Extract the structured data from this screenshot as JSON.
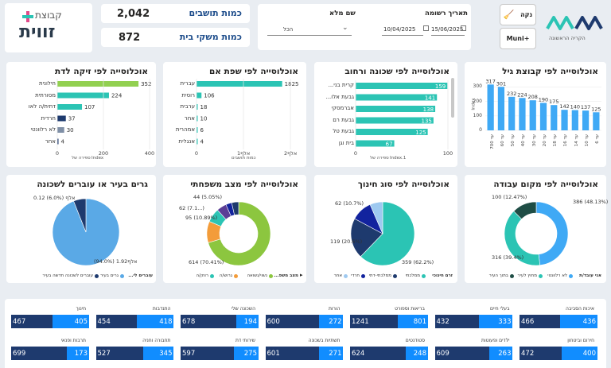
{
  "header": {
    "logo_top": "קבוצת",
    "logo_bottom": "זווית",
    "kpis": [
      {
        "label": "כמות תושבים",
        "value": "2,042"
      },
      {
        "label": "כמות משקי בית",
        "value": "872"
      }
    ],
    "filters": {
      "full_name": {
        "label": "שם מלא",
        "value": "הכל"
      },
      "reg_date": {
        "label": "תאריך רשומה",
        "from": "10/04/2025",
        "to": "15/06/2025"
      }
    },
    "clean_button": "נקה",
    "muni_button": "Muni+",
    "city_caption": "הקריה הראשונה",
    "colors": {
      "primary": "#118dff",
      "dark": "#12239e",
      "teal": "#2bc4b4",
      "navy": "#1e3a6e"
    }
  },
  "panels": {
    "absorption": {
      "title": "אוכלוסייה לפי זיקה לדת",
      "rows": [
        {
          "label": "חילונית",
          "value": 352,
          "color": "#92d050"
        },
        {
          "label": "מסורתית",
          "value": 224,
          "color": "#2bc4b4"
        },
        {
          "label": "דתית/ה לאו",
          "value": 107,
          "color": "#2bc4b4"
        },
        {
          "label": "חרדית",
          "value": 37,
          "color": "#1e3a6e"
        },
        {
          "label": "לא רלוונטי",
          "value": 30,
          "color": "#7f8fa6"
        },
        {
          "label": "אחר",
          "value": 4,
          "color": "#1e3a6e"
        }
      ],
      "ticks": [
        "0",
        "200",
        "400"
      ],
      "xlabel": "Index",
      "xlabel2": "ספירה של"
    },
    "language": {
      "title": "אוכלוסייה לפי שפת אם",
      "rows": [
        {
          "label": "עברית",
          "value": 1825
        },
        {
          "label": "רוסית",
          "value": 106
        },
        {
          "label": "ערבית",
          "value": 18
        },
        {
          "label": "אחר",
          "value": 10
        },
        {
          "label": "אמהרית",
          "value": 6
        },
        {
          "label": "אנגלית",
          "value": 4
        }
      ],
      "ticks": [
        "0",
        "אלף1",
        "אלף2"
      ],
      "xlabel": "כמות תושבים"
    },
    "neighborhood": {
      "title": "אוכלוסייה לפי שכונה ורחוב",
      "rows": [
        {
          "label": "קרית בני...",
          "value": 159
        },
        {
          "label": "גבעת אלו...",
          "value": 141
        },
        {
          "label": "אברמסקי",
          "value": 138
        },
        {
          "label": "גבעת רם",
          "value": 135
        },
        {
          "label": "גבעת טל",
          "value": 125
        },
        {
          "label": "בית וגן",
          "value": 67
        }
      ],
      "ticks": [
        "0",
        "100"
      ],
      "xlabel": "Index.1",
      "xlabel2": "ספירה של"
    },
    "age": {
      "title": "אוכלוסייה לפי קבוצת גיל",
      "categories": [
        "עד 700",
        "עד 60",
        "עד 50",
        "עד 40",
        "עד 30",
        "עד 20",
        "עד 18",
        "עד 16",
        "עד 14",
        "עד 10",
        "עד 6"
      ],
      "values": [
        317,
        301,
        232,
        224,
        208,
        190,
        175,
        142,
        140,
        137,
        125
      ],
      "labels": [
        "317",
        "301",
        "232",
        "224",
        "208",
        "190",
        "175",
        "142",
        "140",
        "137",
        "125"
      ],
      "yticks": [
        "0",
        "100",
        "200",
        "300"
      ],
      "ylabel": "Index"
    },
    "residence": {
      "title": "גרים בעיר או עוברים לשכונה",
      "slices": [
        {
          "label": "אלף1.92 (94.0%)",
          "value": 94.0,
          "color": "#5aa9e6"
        },
        {
          "label": "0.12 אלף (6.0%)",
          "value": 6.0,
          "color": "#1e3a6e"
        }
      ],
      "legend_title": "עוברים לי...",
      "legend": [
        {
          "label": "גרים בעיר",
          "color": "#5aa9e6"
        },
        {
          "label": "עוברים לשכונה חדשה בעיר",
          "color": "#1e3a6e"
        }
      ]
    },
    "family": {
      "title": "אוכלוסייה לפי מצב משפחתי",
      "slices": [
        {
          "label": "614 (70.41%)",
          "value": 70.41,
          "color": "#8cc63f"
        },
        {
          "label": "95 (10.89%)",
          "value": 10.89,
          "color": "#f39c3a"
        },
        {
          "label": "62 (7.1...)",
          "value": 7.11,
          "color": "#2bc4b4"
        },
        {
          "label": "44 (5.05%)",
          "value": 5.05,
          "color": "#5b3e96"
        },
        {
          "label": "",
          "value": 3.0,
          "color": "#12239e"
        },
        {
          "label": "",
          "value": 3.54,
          "color": "#1e3a6e"
        }
      ],
      "legend_title": "מצב משפ...",
      "legend": [
        {
          "label": "נשוי/נשואה",
          "color": "#8cc63f"
        },
        {
          "label": "גרוש/ה",
          "color": "#f39c3a"
        },
        {
          "label": "רווק/ה",
          "color": "#2bc4b4"
        }
      ]
    },
    "education": {
      "title": "אוכלוסייה לפי סוג חינוך",
      "slices": [
        {
          "label": "359 (62.2%)",
          "value": 62.2,
          "color": "#2bc4b4"
        },
        {
          "label": "119 (20.6%)",
          "value": 20.6,
          "color": "#1e3a6e"
        },
        {
          "label": "62 (10.7%)",
          "value": 10.7,
          "color": "#12239e"
        },
        {
          "label": "",
          "value": 6.5,
          "color": "#9ec9f0"
        }
      ],
      "legend_title": "זרם חינוכי",
      "legend": [
        {
          "label": "ממלכתי",
          "color": "#2bc4b4"
        },
        {
          "label": "ממלכתי-דתי",
          "color": "#1e3a6e"
        },
        {
          "label": "חרדי",
          "color": "#12239e"
        },
        {
          "label": "אחר",
          "color": "#9ec9f0"
        }
      ]
    },
    "work": {
      "title": "אוכלוסייה לפי מקום עבודה",
      "slices": [
        {
          "label": "386 (48.13%)",
          "value": 48.13,
          "color": "#3fa9f5"
        },
        {
          "label": "316 (39.4%)",
          "value": 39.4,
          "color": "#2bc4b4"
        },
        {
          "label": "100 (12.47%)",
          "value": 12.47,
          "color": "#1e4d45"
        }
      ],
      "legend_title": "אני עובד/ת",
      "legend": [
        {
          "label": "לא רלוונטי",
          "color": "#3fa9f5"
        },
        {
          "label": "מחוץ לעיר",
          "color": "#2bc4b4"
        },
        {
          "label": "בתוך העיר",
          "color": "#1e4d45"
        }
      ]
    }
  },
  "tiles_row1": [
    {
      "label": "איכות הסביבה",
      "a": "466",
      "b": "436"
    },
    {
      "label": "בעלי חיים",
      "a": "432",
      "b": "333"
    },
    {
      "label": "בריאות וספורט",
      "a": "1241",
      "b": "801"
    },
    {
      "label": "הורות",
      "a": "600",
      "b": "272"
    },
    {
      "label": "השכונה שלי",
      "a": "678",
      "b": "194"
    },
    {
      "label": "התנדבות",
      "a": "454",
      "b": "418"
    },
    {
      "label": "חינוך",
      "a": "467",
      "b": "405"
    }
  ],
  "tiles_row2": [
    {
      "label": "חירום וביטחון",
      "a": "472",
      "b": "400"
    },
    {
      "label": "ילדים ופעוטות",
      "a": "609",
      "b": "263"
    },
    {
      "label": "סטודנטים",
      "a": "624",
      "b": "248"
    },
    {
      "label": "תשתיות בשכונה",
      "a": "601",
      "b": "271"
    },
    {
      "label": "שירותי דת",
      "a": "597",
      "b": "275"
    },
    {
      "label": "תחבורה וחניה",
      "a": "527",
      "b": "345"
    },
    {
      "label": "תרבות ופנאי",
      "a": "699",
      "b": "173"
    }
  ]
}
